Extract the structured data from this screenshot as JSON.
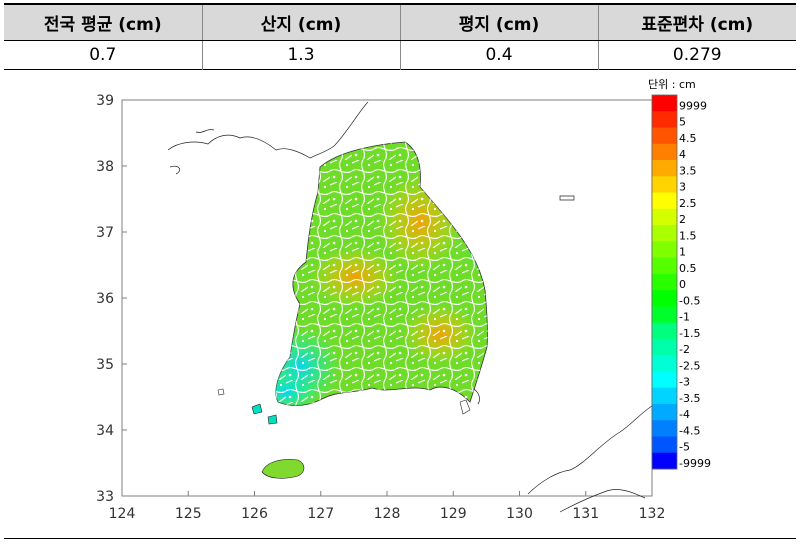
{
  "table": {
    "headers": [
      "전국 평균 (cm)",
      "산지 (cm)",
      "평지 (cm)",
      "표준편차 (cm)"
    ],
    "values": [
      "0.7",
      "1.3",
      "0.4",
      "0.279"
    ]
  },
  "map": {
    "x_ticks": [
      "124",
      "125",
      "126",
      "127",
      "128",
      "129",
      "130",
      "131",
      "132"
    ],
    "y_ticks": [
      "39",
      "38",
      "37",
      "36",
      "35",
      "34",
      "33"
    ],
    "legend_unit": "단위 : cm",
    "legend": [
      {
        "label": "9999",
        "color": "#ff0000"
      },
      {
        "label": "5",
        "color": "#ff2a00"
      },
      {
        "label": "4.5",
        "color": "#ff5500"
      },
      {
        "label": "4",
        "color": "#ff7f00"
      },
      {
        "label": "3.5",
        "color": "#ffaa00"
      },
      {
        "label": "3",
        "color": "#ffd400"
      },
      {
        "label": "2.5",
        "color": "#ffff00"
      },
      {
        "label": "2",
        "color": "#d4ff00"
      },
      {
        "label": "1.5",
        "color": "#aaff00"
      },
      {
        "label": "1",
        "color": "#7fff00"
      },
      {
        "label": "0.5",
        "color": "#55ff00"
      },
      {
        "label": "0",
        "color": "#2aff00"
      },
      {
        "label": "-0.5",
        "color": "#00ff00"
      },
      {
        "label": "-1",
        "color": "#00ff2a"
      },
      {
        "label": "-1.5",
        "color": "#00ff7f"
      },
      {
        "label": "-2",
        "color": "#00ffaa"
      },
      {
        "label": "-2.5",
        "color": "#00ffd4"
      },
      {
        "label": "-3",
        "color": "#00ffff"
      },
      {
        "label": "-3.5",
        "color": "#00d4ff"
      },
      {
        "label": "-4",
        "color": "#00aaff"
      },
      {
        "label": "-4.5",
        "color": "#007fff"
      },
      {
        "label": "-5",
        "color": "#0055ff"
      },
      {
        "label": "-9999",
        "color": "#0000ff"
      }
    ]
  }
}
